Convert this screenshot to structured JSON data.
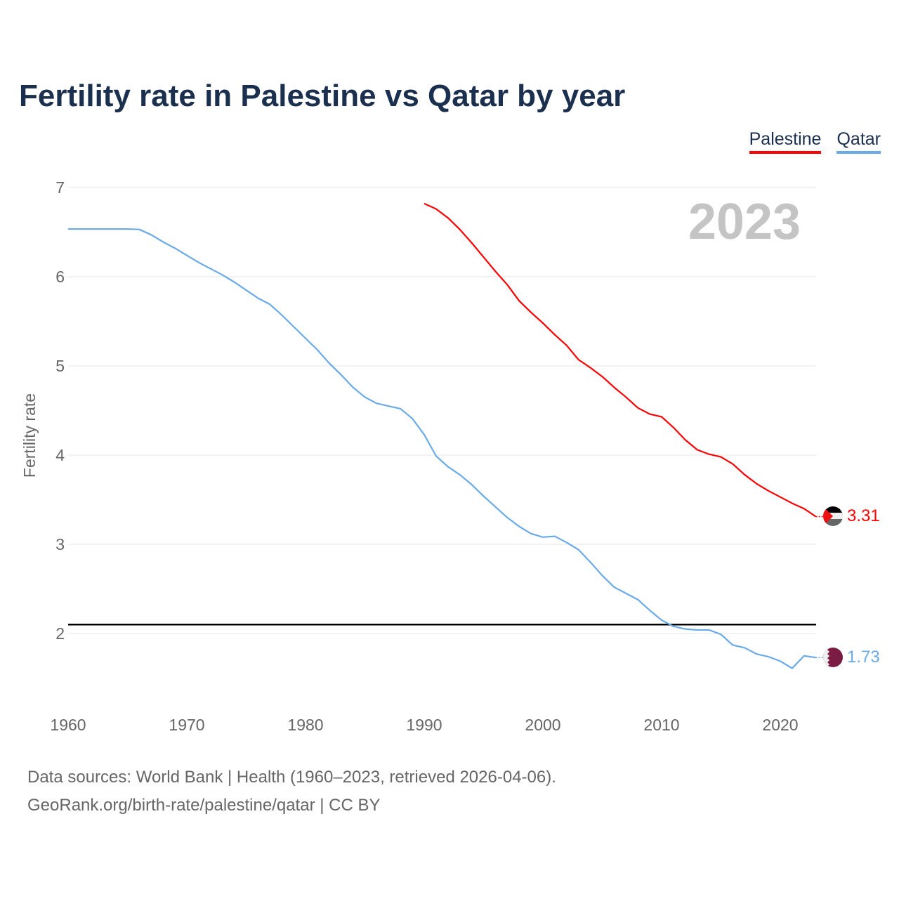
{
  "title": "Fertility rate in Palestine vs Qatar by year",
  "legend": [
    "Palestine",
    "Qatar"
  ],
  "year_label": "2023",
  "source_line1": "Data sources: World Bank | Health (1960–2023, retrieved 2026-04-06).",
  "source_line2": "GeoRank.org/birth-rate/palestine/qatar | CC BY",
  "colors": {
    "palestine": "#ff0000",
    "qatar": "#6aaae8",
    "reference": "#000000"
  },
  "chart_data": {
    "type": "line",
    "title": "Fertility rate in Palestine vs Qatar by year",
    "xlabel": "",
    "ylabel": "Fertility rate",
    "xlim": [
      1960,
      2023
    ],
    "ylim": [
      1.4,
      7
    ],
    "xticks": [
      1960,
      1970,
      1980,
      1990,
      2000,
      2010,
      2020
    ],
    "yticks": [
      2,
      3,
      4,
      5,
      6,
      7
    ],
    "reference_line": 2.1,
    "legend_position": "top-right",
    "series": [
      {
        "name": "Palestine",
        "end_label": "3.31",
        "start_year": 1990,
        "values": [
          6.82,
          6.76,
          6.66,
          6.53,
          6.38,
          6.22,
          6.06,
          5.91,
          5.73,
          5.6,
          5.48,
          5.35,
          5.23,
          5.07,
          4.98,
          4.88,
          4.76,
          4.65,
          4.53,
          4.46,
          4.43,
          4.31,
          4.17,
          4.06,
          4.01,
          3.98,
          3.9,
          3.78,
          3.68,
          3.6,
          3.53,
          3.46,
          3.4,
          3.31
        ]
      },
      {
        "name": "Qatar",
        "end_label": "1.73",
        "start_year": 1960,
        "values": [
          6.535,
          6.535,
          6.535,
          6.535,
          6.535,
          6.535,
          6.53,
          6.47,
          6.39,
          6.32,
          6.24,
          6.16,
          6.09,
          6.02,
          5.94,
          5.85,
          5.76,
          5.69,
          5.57,
          5.44,
          5.31,
          5.18,
          5.03,
          4.9,
          4.76,
          4.65,
          4.58,
          4.55,
          4.52,
          4.41,
          4.23,
          3.99,
          3.87,
          3.78,
          3.67,
          3.54,
          3.42,
          3.3,
          3.2,
          3.12,
          3.08,
          3.09,
          3.02,
          2.94,
          2.8,
          2.65,
          2.52,
          2.45,
          2.38,
          2.26,
          2.15,
          2.08,
          2.05,
          2.04,
          2.04,
          1.99,
          1.87,
          1.84,
          1.77,
          1.74,
          1.69,
          1.61,
          1.75,
          1.73
        ]
      }
    ]
  }
}
